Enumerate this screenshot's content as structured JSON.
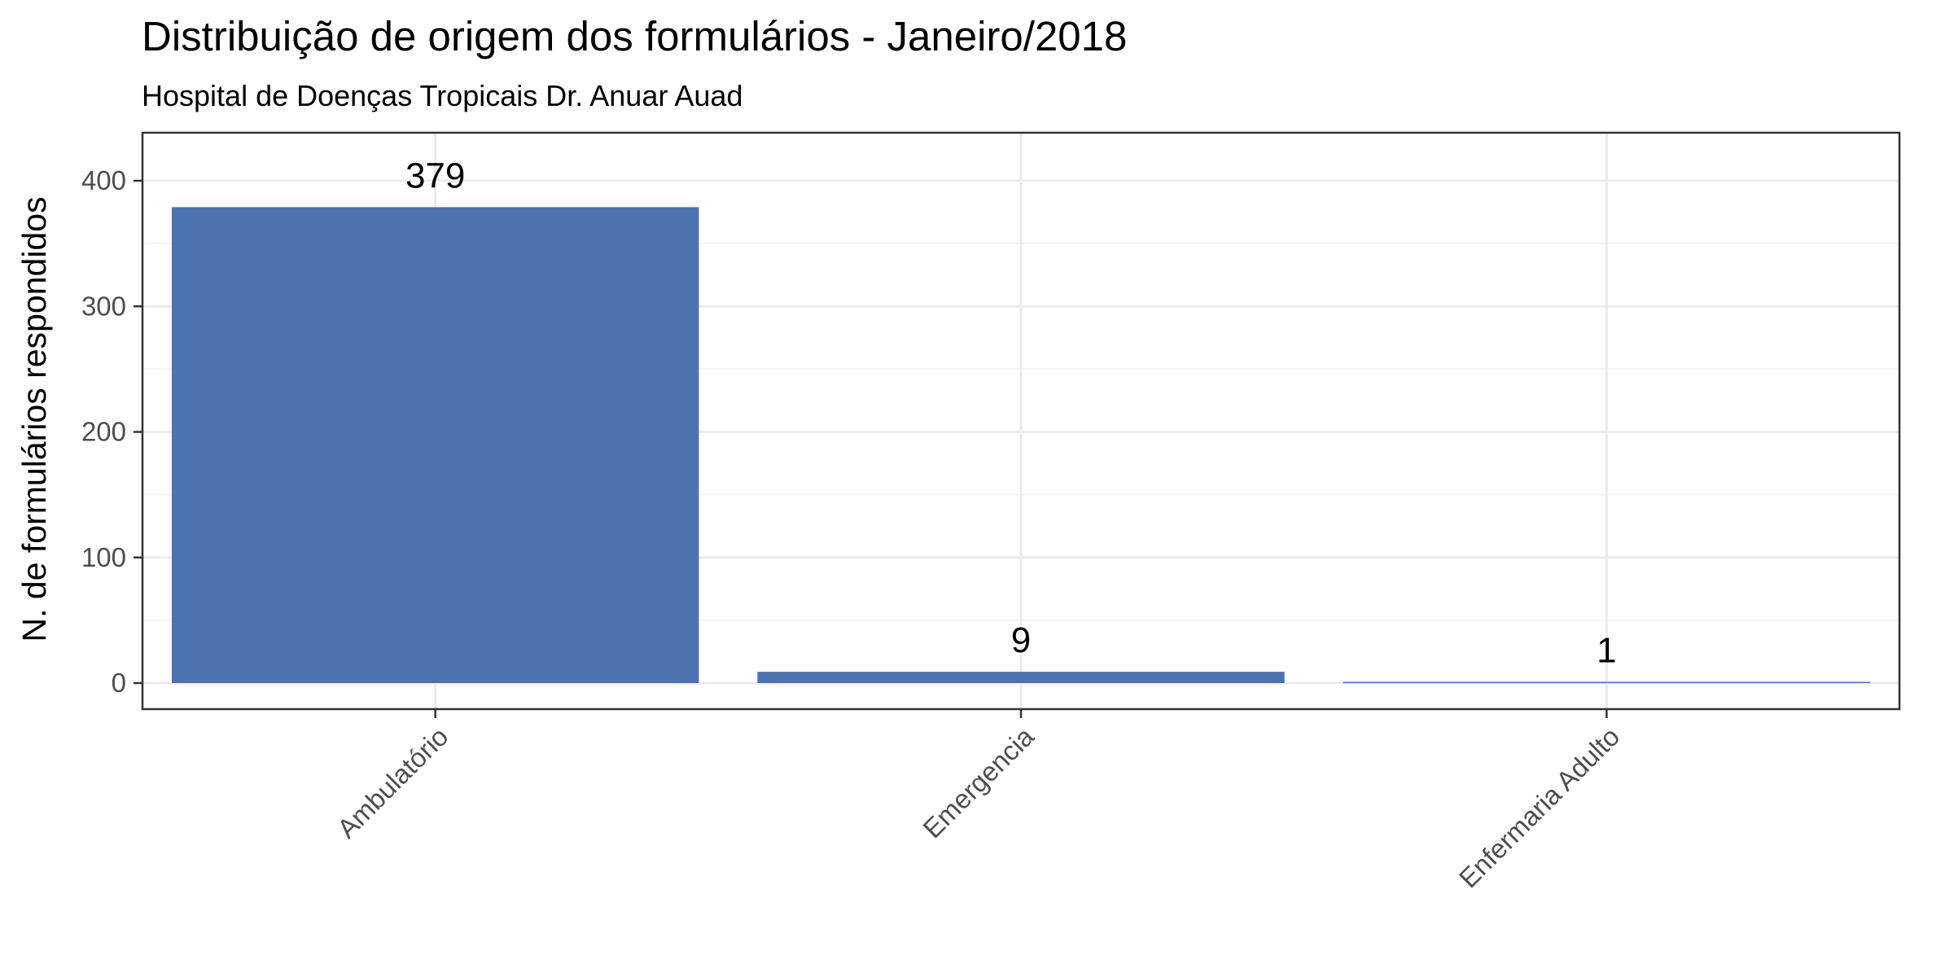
{
  "chart_data": {
    "type": "bar",
    "title": "Distribuição de origem dos formulários - Janeiro/2018",
    "subtitle": "Hospital de Doenças Tropicais Dr. Anuar Auad",
    "xlabel": "",
    "ylabel": "N. de formulários respondidos",
    "categories": [
      "Ambulatório",
      "Emergencia",
      "Enfermaria Adulto"
    ],
    "values": [
      379,
      9,
      1
    ],
    "data_labels": [
      "379",
      "9",
      "1"
    ],
    "ylim": [
      0,
      440
    ],
    "yticks": [
      0,
      100,
      200,
      300,
      400
    ],
    "ytick_labels": [
      "0",
      "100",
      "200",
      "300",
      "400"
    ],
    "grid": true,
    "bar_color": "#4C72B0"
  }
}
